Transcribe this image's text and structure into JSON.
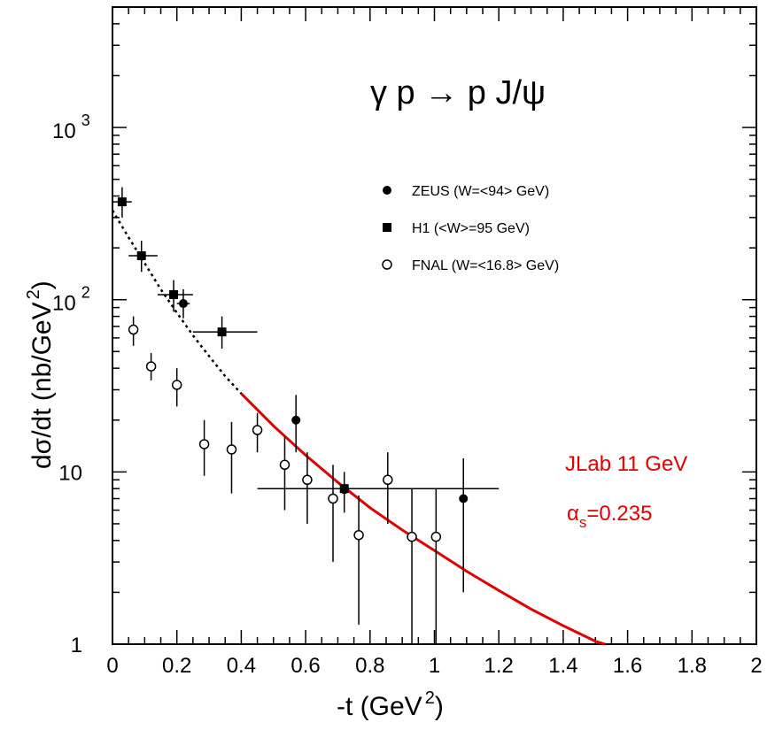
{
  "chart_data": {
    "type": "scatter",
    "title": "",
    "reaction_label": {
      "main": "γ p → p J/ψ"
    },
    "xlabel": {
      "main": "-t (GeV",
      "sup": "2",
      "close": ")"
    },
    "ylabel": {
      "main": "dσ/dt (nb/GeV",
      "sup": "2",
      "close": ")"
    },
    "xlim": [
      0,
      2
    ],
    "ylim": [
      1,
      5000
    ],
    "yscale": "log",
    "x_ticks": [
      {
        "value": 0,
        "label": "0"
      },
      {
        "value": 0.2,
        "label": "0.2"
      },
      {
        "value": 0.4,
        "label": "0.4"
      },
      {
        "value": 0.6,
        "label": "0.6"
      },
      {
        "value": 0.8,
        "label": "0.8"
      },
      {
        "value": 1.0,
        "label": "1"
      },
      {
        "value": 1.2,
        "label": "1.2"
      },
      {
        "value": 1.4,
        "label": "1.4"
      },
      {
        "value": 1.6,
        "label": "1.6"
      },
      {
        "value": 1.8,
        "label": "1.8"
      },
      {
        "value": 2.0,
        "label": "2"
      }
    ],
    "y_ticks": [
      {
        "value": 1,
        "label": "1"
      },
      {
        "value": 10,
        "label": "10"
      },
      {
        "value": 100,
        "base": "10",
        "exp": "2"
      },
      {
        "value": 1000,
        "base": "10",
        "exp": "3"
      }
    ],
    "series": [
      {
        "name": "ZEUS",
        "legend": "ZEUS  (W=<94> GeV)",
        "marker": "filled-circle",
        "points": [
          {
            "x": 0.22,
            "y": 95,
            "ylo": 78,
            "yhi": 115,
            "xlo": 0.2,
            "xhi": 0.24
          },
          {
            "x": 0.57,
            "y": 20,
            "ylo": 13,
            "yhi": 28
          },
          {
            "x": 0.72,
            "y": 7.9,
            "ylo": 5.8,
            "yhi": 10
          },
          {
            "x": 1.09,
            "y": 7,
            "ylo": 2,
            "yhi": 12
          }
        ]
      },
      {
        "name": "H1",
        "legend": "H1  (<W>=95 GeV)",
        "marker": "filled-square",
        "points": [
          {
            "x": 0.03,
            "y": 370,
            "ylo": 300,
            "yhi": 450,
            "xlo": 0.0,
            "xhi": 0.06
          },
          {
            "x": 0.09,
            "y": 180,
            "ylo": 145,
            "yhi": 220,
            "xlo": 0.05,
            "xhi": 0.14
          },
          {
            "x": 0.19,
            "y": 107,
            "ylo": 85,
            "yhi": 130,
            "xlo": 0.14,
            "xhi": 0.25
          },
          {
            "x": 0.34,
            "y": 65,
            "ylo": 52,
            "yhi": 80,
            "xlo": 0.25,
            "xhi": 0.45
          },
          {
            "x": 0.72,
            "y": 8,
            "ylo": 7.2,
            "yhi": 8.8,
            "xlo": 0.45,
            "xhi": 1.2
          }
        ]
      },
      {
        "name": "FNAL",
        "legend": "FNAL  (W=<16.8> GeV)",
        "marker": "open-circle",
        "points": [
          {
            "x": 0.065,
            "y": 67,
            "ylo": 54,
            "yhi": 80
          },
          {
            "x": 0.12,
            "y": 41,
            "ylo": 34,
            "yhi": 49
          },
          {
            "x": 0.2,
            "y": 32,
            "ylo": 24,
            "yhi": 40
          },
          {
            "x": 0.285,
            "y": 14.5,
            "ylo": 9.5,
            "yhi": 20
          },
          {
            "x": 0.37,
            "y": 13.5,
            "ylo": 7.5,
            "yhi": 19.5
          },
          {
            "x": 0.45,
            "y": 17.5,
            "ylo": 13,
            "yhi": 22
          },
          {
            "x": 0.535,
            "y": 11,
            "ylo": 6,
            "yhi": 16
          },
          {
            "x": 0.605,
            "y": 9,
            "ylo": 5,
            "yhi": 13
          },
          {
            "x": 0.685,
            "y": 7,
            "ylo": 3,
            "yhi": 11
          },
          {
            "x": 0.765,
            "y": 4.3,
            "ylo": 1.3,
            "yhi": 7.3
          },
          {
            "x": 0.855,
            "y": 9,
            "ylo": 5,
            "yhi": 13
          },
          {
            "x": 0.93,
            "y": 4.2,
            "ylo": 1,
            "yhi": 8
          },
          {
            "x": 1.005,
            "y": 4.2,
            "ylo": 1,
            "yhi": 8
          }
        ]
      }
    ],
    "curve": {
      "color": "#e00000",
      "dashed_until": 0.4,
      "points": [
        {
          "x": 0.0,
          "y": 330
        },
        {
          "x": 0.05,
          "y": 230
        },
        {
          "x": 0.1,
          "y": 163
        },
        {
          "x": 0.15,
          "y": 115
        },
        {
          "x": 0.2,
          "y": 84
        },
        {
          "x": 0.25,
          "y": 62
        },
        {
          "x": 0.3,
          "y": 47
        },
        {
          "x": 0.35,
          "y": 36
        },
        {
          "x": 0.4,
          "y": 28.5
        },
        {
          "x": 0.5,
          "y": 18.5
        },
        {
          "x": 0.6,
          "y": 12.5
        },
        {
          "x": 0.7,
          "y": 8.7
        },
        {
          "x": 0.8,
          "y": 6.2
        },
        {
          "x": 0.9,
          "y": 4.6
        },
        {
          "x": 1.0,
          "y": 3.5
        },
        {
          "x": 1.1,
          "y": 2.65
        },
        {
          "x": 1.2,
          "y": 2.05
        },
        {
          "x": 1.3,
          "y": 1.6
        },
        {
          "x": 1.4,
          "y": 1.28
        },
        {
          "x": 1.5,
          "y": 1.04
        },
        {
          "x": 1.53,
          "y": 1.0
        }
      ]
    },
    "annotations": {
      "jlab": "JLab 11 GeV",
      "alpha": {
        "symbol": "α",
        "sub": "s",
        "value": "=0.235"
      }
    },
    "colors": {
      "curve": "#e00000",
      "markers": "#000000"
    },
    "legend_position": "top-right",
    "grid": false
  }
}
